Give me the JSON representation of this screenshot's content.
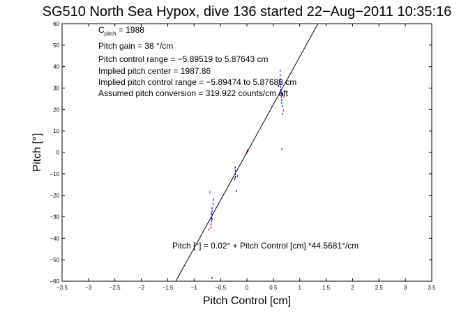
{
  "chart_data": {
    "type": "scatter",
    "title": "SG510 North Sea Hypox, dive 136 started 22−Aug−2011 10:35:16",
    "xlabel": "Pitch Control [cm]",
    "ylabel": "Pitch [°]",
    "xlim": [
      -3.5,
      3.5
    ],
    "ylim": [
      -60,
      60
    ],
    "xticks": [
      "−3.5",
      "−3",
      "−2.5",
      "−2",
      "−1.5",
      "−1",
      "−0.5",
      "0",
      "0.5",
      "1",
      "1.5",
      "2",
      "2.5",
      "3",
      "3.5"
    ],
    "yticks": [
      "60",
      "50",
      "40",
      "30",
      "20",
      "10",
      "0",
      "−10",
      "−20",
      "−30",
      "−40",
      "−50",
      "−60"
    ],
    "grid": false,
    "annotations": {
      "c_pitch_main": "C",
      "c_pitch_sub": "pitch",
      "c_pitch_rest": " = 1988",
      "pitch_gain": "Pitch gain = 38 °/cm",
      "control_range": "Pitch control range = −5.89519 to 5.87643 cm",
      "implied_center": "Implied pitch center = 1987.86",
      "implied_range": "Implied pitch control range = −5.89474 to 5.87688 cm",
      "assumed_conversion": "Assumed pitch conversion = 319.922 counts/cm aft",
      "fit_equation": "Pitch [°] = 0.02° + Pitch Control [cm] *44.5681°/cm"
    },
    "fit_line": {
      "intercept": 0.02,
      "slope": 44.5681,
      "color": "#000000"
    },
    "series": [
      {
        "color": "#0000ff",
        "points": [
          [
            -0.66,
            -26
          ],
          [
            -0.66,
            -27.5
          ],
          [
            -0.66,
            -29
          ],
          [
            -0.67,
            -30.5
          ],
          [
            -0.67,
            -32
          ],
          [
            -0.68,
            -33.5
          ],
          [
            -0.68,
            -35
          ],
          [
            -0.64,
            -24
          ],
          [
            -0.63,
            -22
          ],
          [
            -0.66,
            -31
          ],
          [
            -0.67,
            -28.5
          ],
          [
            -0.22,
            -7
          ],
          [
            -0.22,
            -8.5
          ],
          [
            -0.22,
            -10
          ],
          [
            -0.22,
            -11.5
          ],
          [
            -0.23,
            -12.5
          ],
          [
            -0.2,
            -18
          ],
          [
            0.63,
            38
          ],
          [
            0.63,
            36
          ],
          [
            0.63,
            34
          ],
          [
            0.64,
            32
          ],
          [
            0.64,
            30.5
          ],
          [
            0.64,
            29
          ],
          [
            0.65,
            27.5
          ],
          [
            0.65,
            26
          ],
          [
            0.66,
            24.5
          ],
          [
            0.66,
            23
          ],
          [
            0.67,
            21.5
          ],
          [
            0.62,
            33
          ],
          [
            0.68,
            27
          ],
          [
            0.6,
            31
          ],
          [
            -0.66,
            -58.5
          ]
        ]
      },
      {
        "color": "#ff0000",
        "points": [
          [
            -0.7,
            -18.5
          ],
          [
            -0.72,
            -36
          ],
          [
            -0.18,
            -11
          ],
          [
            0.0,
            0.2
          ],
          [
            0.01,
            1
          ],
          [
            -0.01,
            -0.5
          ],
          [
            0.02,
            0.5
          ],
          [
            0.68,
            18
          ],
          [
            0.7,
            26
          ],
          [
            0.69,
            19.5
          ],
          [
            0.58,
            33
          ],
          [
            0.66,
            1.5
          ]
        ]
      }
    ]
  }
}
